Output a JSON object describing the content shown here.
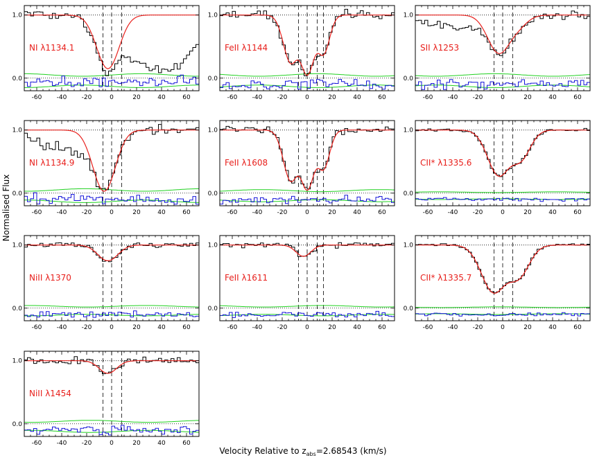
{
  "chart_data": {
    "type": "line",
    "xlabel": "Velocity Relative to z_abs=2.68543 (km/s)",
    "xlabel_parts": {
      "prefix": "Velocity Relative to z",
      "subscript": "abs",
      "suffix": "=2.68543 (km/s)"
    },
    "ylabel": "Normalised Flux",
    "xlim": [
      -70,
      70
    ],
    "ylim": [
      -0.2,
      1.15
    ],
    "xticks": [
      -60,
      -40,
      -20,
      0,
      20,
      40,
      60
    ],
    "yticks": [
      0.0,
      1.0
    ],
    "ytick_labels": [
      "0.0",
      "1.0"
    ],
    "colors": {
      "data": "#000000",
      "model": "#e8201c",
      "residual": "#1515d8",
      "error": "#1fd01f",
      "guide": "#000000"
    },
    "panels": [
      {
        "label": "NI λ1134.1",
        "comp_lines": [
          -7,
          0,
          8
        ],
        "model_comps": [
          {
            "v": -3,
            "depth": 0.85,
            "sigma": 9
          }
        ],
        "data_dips": [
          {
            "v": -3,
            "depth": 0.85,
            "sigma": 9
          },
          {
            "v": 22,
            "depth": 0.55,
            "sigma": 20
          },
          {
            "v": 45,
            "depth": 0.8,
            "sigma": 22
          }
        ],
        "residual_offset": -0.05,
        "noise": 0.05
      },
      {
        "label": "FeII λ1144",
        "comp_lines": [
          -7,
          0,
          8,
          13
        ],
        "model_comps": [
          {
            "v": -13,
            "depth": 0.75,
            "sigma": 6
          },
          {
            "v": 0,
            "depth": 0.95,
            "sigma": 6
          },
          {
            "v": 13,
            "depth": 0.6,
            "sigma": 5
          }
        ],
        "data_dips": [
          {
            "v": -13,
            "depth": 0.75,
            "sigma": 6
          },
          {
            "v": 0,
            "depth": 0.95,
            "sigma": 6
          },
          {
            "v": 13,
            "depth": 0.6,
            "sigma": 5
          }
        ],
        "residual_offset": -0.1,
        "noise": 0.05
      },
      {
        "label": "SII λ1253",
        "comp_lines": [
          -7,
          0,
          8
        ],
        "model_comps": [
          {
            "v": -3,
            "depth": 0.6,
            "sigma": 9
          },
          {
            "v": 12,
            "depth": 0.15,
            "sigma": 8
          }
        ],
        "data_dips": [
          {
            "v": -3,
            "depth": 0.6,
            "sigma": 9
          },
          {
            "v": 12,
            "depth": 0.15,
            "sigma": 8
          },
          {
            "v": -55,
            "depth": 0.15,
            "sigma": 12
          },
          {
            "v": -30,
            "depth": 0.2,
            "sigma": 10
          }
        ],
        "residual_offset": -0.1,
        "noise": 0.05
      },
      {
        "label": "NI λ1134.9",
        "comp_lines": [
          -7,
          0,
          8
        ],
        "model_comps": [
          {
            "v": -6,
            "depth": 0.97,
            "sigma": 9
          }
        ],
        "data_dips": [
          {
            "v": -6,
            "depth": 0.97,
            "sigma": 9
          },
          {
            "v": -50,
            "depth": 0.25,
            "sigma": 15
          },
          {
            "v": -25,
            "depth": 0.3,
            "sigma": 10
          }
        ],
        "residual_offset": -0.1,
        "noise": 0.05
      },
      {
        "label": "FeII λ1608",
        "comp_lines": [
          -7,
          0,
          8,
          13
        ],
        "model_comps": [
          {
            "v": -13,
            "depth": 0.8,
            "sigma": 6
          },
          {
            "v": 0,
            "depth": 0.95,
            "sigma": 6
          },
          {
            "v": 13,
            "depth": 0.6,
            "sigma": 5
          }
        ],
        "data_dips": [
          {
            "v": -13,
            "depth": 0.8,
            "sigma": 6
          },
          {
            "v": 0,
            "depth": 0.95,
            "sigma": 6
          },
          {
            "v": 13,
            "depth": 0.6,
            "sigma": 5
          }
        ],
        "residual_offset": -0.1,
        "noise": 0.04
      },
      {
        "label": "CII* λ1335.6",
        "comp_lines": [
          -7,
          0,
          8
        ],
        "model_comps": [
          {
            "v": -3,
            "depth": 0.72,
            "sigma": 9
          },
          {
            "v": 14,
            "depth": 0.45,
            "sigma": 8
          }
        ],
        "data_dips": [
          {
            "v": -3,
            "depth": 0.72,
            "sigma": 9
          },
          {
            "v": 14,
            "depth": 0.45,
            "sigma": 8
          }
        ],
        "residual_offset": -0.1,
        "noise": 0.015
      },
      {
        "label": "NiII λ1370",
        "comp_lines": [
          -7,
          0,
          8
        ],
        "model_comps": [
          {
            "v": -3,
            "depth": 0.25,
            "sigma": 8
          }
        ],
        "data_dips": [
          {
            "v": -3,
            "depth": 0.25,
            "sigma": 8
          }
        ],
        "residual_offset": -0.1,
        "noise": 0.03
      },
      {
        "label": "FeII λ1611",
        "comp_lines": [
          -7,
          0,
          8,
          13
        ],
        "model_comps": [
          {
            "v": -3,
            "depth": 0.18,
            "sigma": 6
          }
        ],
        "data_dips": [
          {
            "v": -3,
            "depth": 0.18,
            "sigma": 6
          }
        ],
        "residual_offset": -0.1,
        "noise": 0.03
      },
      {
        "label": "CII* λ1335.7",
        "comp_lines": [
          -7,
          0,
          8
        ],
        "model_comps": [
          {
            "v": -7,
            "depth": 0.75,
            "sigma": 10
          },
          {
            "v": 12,
            "depth": 0.5,
            "sigma": 9
          }
        ],
        "data_dips": [
          {
            "v": -7,
            "depth": 0.75,
            "sigma": 10
          },
          {
            "v": 12,
            "depth": 0.5,
            "sigma": 9
          }
        ],
        "residual_offset": -0.1,
        "noise": 0.015
      },
      {
        "label": "NiII λ1454",
        "comp_lines": [
          -7,
          0,
          8
        ],
        "model_comps": [
          {
            "v": -3,
            "depth": 0.2,
            "sigma": 7
          }
        ],
        "data_dips": [
          {
            "v": -3,
            "depth": 0.2,
            "sigma": 7
          }
        ],
        "residual_offset": -0.1,
        "noise": 0.04
      }
    ]
  }
}
